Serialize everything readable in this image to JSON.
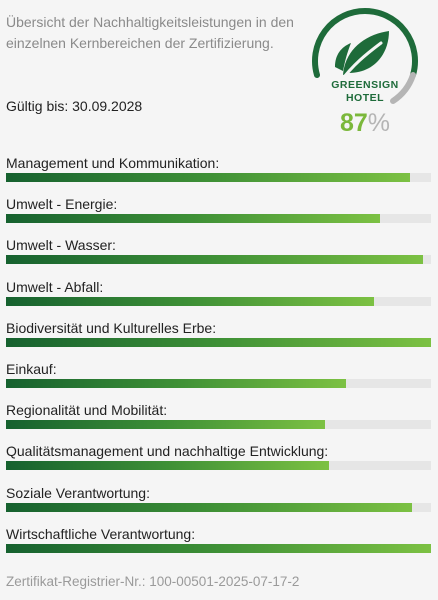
{
  "intro_text": "Übersicht der Nachhaltigkeitsleistungen in den einzelnen Kernbereichen der Zertifizierung.",
  "valid_until": "Gültig bis: 30.09.2028",
  "badge": {
    "line1": "GREENSIGN",
    "line2": "HOTEL",
    "percent_value": "87",
    "percent_sign": "%",
    "icon": "leaf-icon",
    "colors": {
      "green_dark": "#1e6b3a",
      "green_light": "#7bb83b",
      "ring_grey": "#b5b5b5"
    }
  },
  "scores": [
    {
      "label": "Management und Kommunikation:",
      "fraction": 0.95
    },
    {
      "label": "Umwelt - Energie:",
      "fraction": 0.88
    },
    {
      "label": "Umwelt - Wasser:",
      "fraction": 0.98
    },
    {
      "label": "Umwelt - Abfall:",
      "fraction": 0.865
    },
    {
      "label": "Biodiversität und Kulturelles Erbe:",
      "fraction": 1.0
    },
    {
      "label": "Einkauf:",
      "fraction": 0.8
    },
    {
      "label": "Regionalität und Mobilität:",
      "fraction": 0.75
    },
    {
      "label": "Qualitätsmanagement und nachhaltige Entwicklung:",
      "fraction": 0.76
    },
    {
      "label": "Soziale Verantwortung:",
      "fraction": 0.955
    },
    {
      "label": "Wirtschaftliche Verantwortung:",
      "fraction": 1.0
    }
  ],
  "footer": "Zertifikat-Registrier-Nr.: 100-00501-2025-07-17-2"
}
